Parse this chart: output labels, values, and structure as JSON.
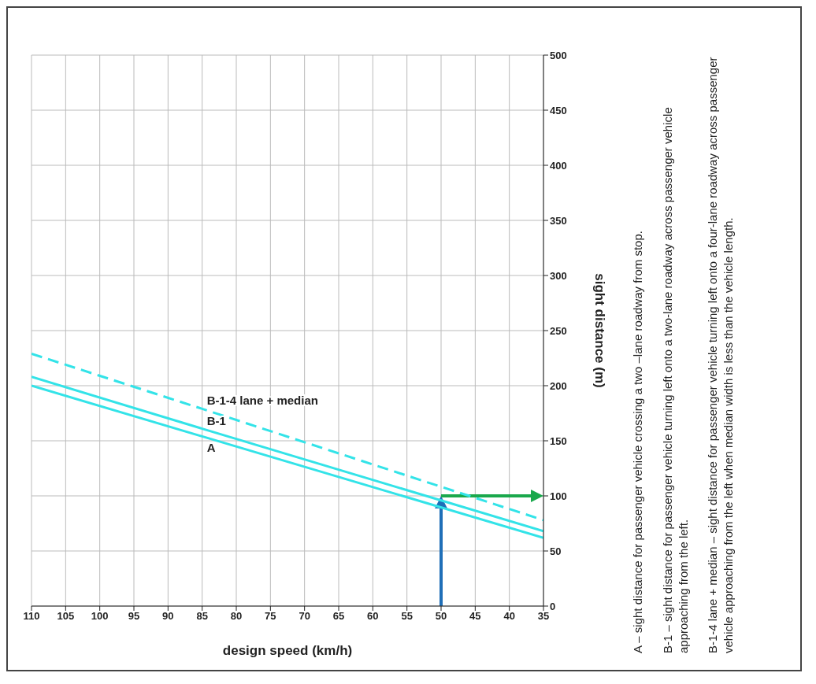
{
  "chart_data": {
    "type": "line",
    "xlabel": "design speed (km/h)",
    "ylabel": "sight distance (m)",
    "xlim": [
      110,
      35
    ],
    "xticks": [
      110,
      105,
      100,
      95,
      90,
      85,
      80,
      75,
      70,
      65,
      60,
      55,
      50,
      45,
      40,
      35
    ],
    "ylim": [
      0,
      500
    ],
    "yticks": [
      0,
      50,
      100,
      150,
      200,
      250,
      300,
      350,
      400,
      450,
      500
    ],
    "grid": true,
    "marker": "none",
    "series": [
      {
        "name": "A",
        "color": "#33e3e8",
        "x": [
          110,
          85,
          35
        ],
        "values": [
          200,
          154,
          62
        ],
        "line_style": "solid"
      },
      {
        "name": "B-1",
        "color": "#33e3e8",
        "x": [
          110,
          85,
          35
        ],
        "values": [
          208,
          161,
          68
        ],
        "line_style": "solid"
      },
      {
        "name": "B-1-4 lane + median",
        "color": "#33e3e8",
        "x": [
          110,
          85,
          35
        ],
        "values": [
          229,
          179,
          78
        ],
        "line_style": "dashed"
      }
    ],
    "annotations": [
      "A – sight distance for passenger vehicle crossing a two –lane roadway from stop.",
      "B-1 – sight distance for passenger vehicle turning left onto a two-lane roadway across passenger vehicle approaching from the left.",
      "B-1-4 lane + median – sight distance for passenger vehicle turning left onto a four-lane roadway across passenger vehicle approaching from the left when median width is less than the vehicle length."
    ]
  }
}
